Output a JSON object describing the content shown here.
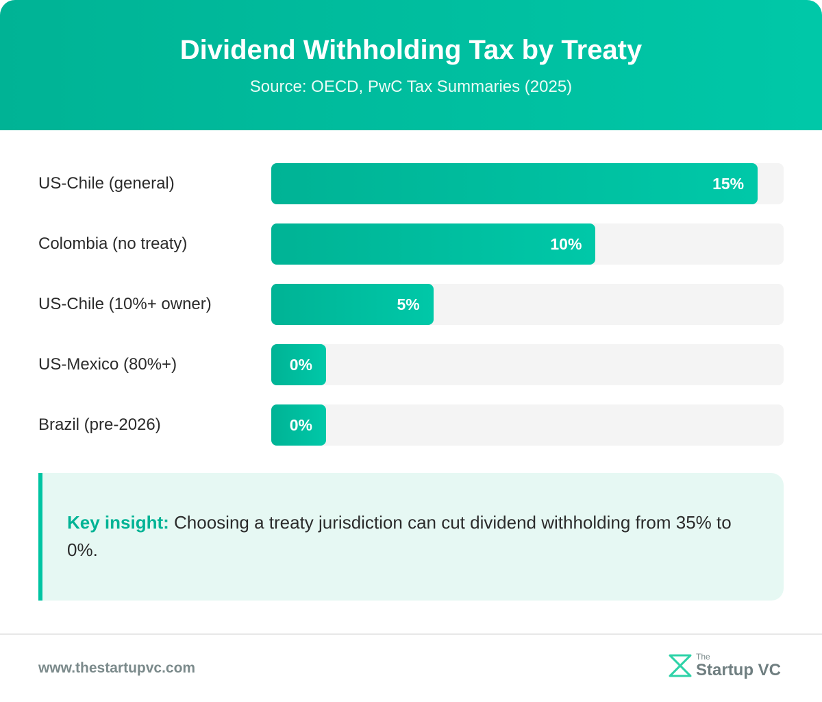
{
  "header": {
    "title": "Dividend Withholding Tax by Treaty",
    "subtitle": "Source: OECD, PwC Tax Summaries (2025)"
  },
  "chart_data": {
    "type": "bar",
    "orientation": "horizontal",
    "title": "Dividend Withholding Tax by Treaty",
    "subtitle": "Source: OECD, PwC Tax Summaries (2025)",
    "categories": [
      "US-Chile (general)",
      "Colombia (no treaty)",
      "US-Chile (10%+ owner)",
      "US-Mexico (80%+)",
      "Brazil (pre-2026)"
    ],
    "values": [
      15,
      10,
      5,
      0,
      0
    ],
    "value_labels": [
      "15%",
      "10%",
      "5%",
      "0%",
      "0%"
    ],
    "unit": "%",
    "xlim": [
      0,
      15.8
    ],
    "grid": false,
    "bar_color": "#00b395"
  },
  "insight": {
    "key": "Key insight:",
    "text": " Choosing a treaty jurisdiction can cut dividend withholding from 35% to 0%."
  },
  "footer": {
    "url": "www.thestartupvc.com",
    "logo_small": "The",
    "logo_main": "Startup VC"
  },
  "colors": {
    "brand": "#00b395",
    "brand_light": "#00c8a8",
    "insight_bg": "#e6f8f3",
    "track": "#f4f4f4"
  }
}
